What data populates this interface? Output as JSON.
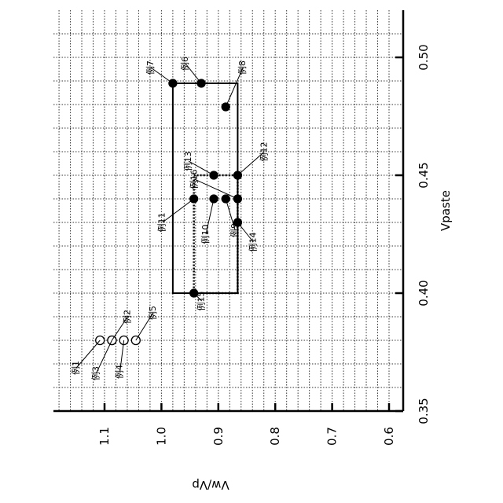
{
  "chart_data": {
    "type": "scatter",
    "orientation": "rotated-90-ccw",
    "xlabel": "Vpaste",
    "ylabel": "Vw/Vp",
    "xlim": [
      0.35,
      0.525
    ],
    "ylim": [
      0.6,
      1.17
    ],
    "x_ticks": [
      "0.35",
      "0.40",
      "0.45",
      "0.50"
    ],
    "y_ticks": [
      "0.6",
      "0.7",
      "0.8",
      "0.9",
      "1.0",
      "1.1"
    ],
    "grid": true,
    "points": [
      {
        "label": "例1",
        "x": 0.38,
        "y": 1.108,
        "marker": "open"
      },
      {
        "label": "例2",
        "x": 0.38,
        "y": 1.087,
        "marker": "open"
      },
      {
        "label": "例3",
        "x": 0.38,
        "y": 1.087,
        "marker": "open"
      },
      {
        "label": "例4",
        "x": 0.38,
        "y": 1.066,
        "marker": "open"
      },
      {
        "label": "例5",
        "x": 0.38,
        "y": 1.045,
        "marker": "open"
      },
      {
        "label": "例6",
        "x": 0.489,
        "y": 0.93,
        "marker": "filled"
      },
      {
        "label": "例7",
        "x": 0.489,
        "y": 0.98,
        "marker": "filled"
      },
      {
        "label": "例8",
        "x": 0.479,
        "y": 0.887,
        "marker": "filled"
      },
      {
        "label": "例9",
        "x": 0.44,
        "y": 0.887,
        "marker": "filled"
      },
      {
        "label": "例10",
        "x": 0.44,
        "y": 0.908,
        "marker": "filled"
      },
      {
        "label": "例11",
        "x": 0.44,
        "y": 0.943,
        "marker": "filled"
      },
      {
        "label": "例12",
        "x": 0.45,
        "y": 0.866,
        "marker": "filled"
      },
      {
        "label": "例13",
        "x": 0.45,
        "y": 0.908,
        "marker": "filled"
      },
      {
        "label": "例14",
        "x": 0.43,
        "y": 0.866,
        "marker": "filled"
      },
      {
        "label": "例15",
        "x": 0.4,
        "y": 0.943,
        "marker": "filled"
      },
      {
        "label": "例16",
        "x": 0.44,
        "y": 0.866,
        "marker": "filled"
      }
    ],
    "regions": [
      {
        "style": "solid",
        "x_range": [
          0.4,
          0.489
        ],
        "y_range": [
          0.866,
          0.98
        ]
      },
      {
        "style": "dotted",
        "x_range": [
          0.4,
          0.45
        ],
        "y_range": [
          0.866,
          0.943
        ]
      }
    ]
  }
}
